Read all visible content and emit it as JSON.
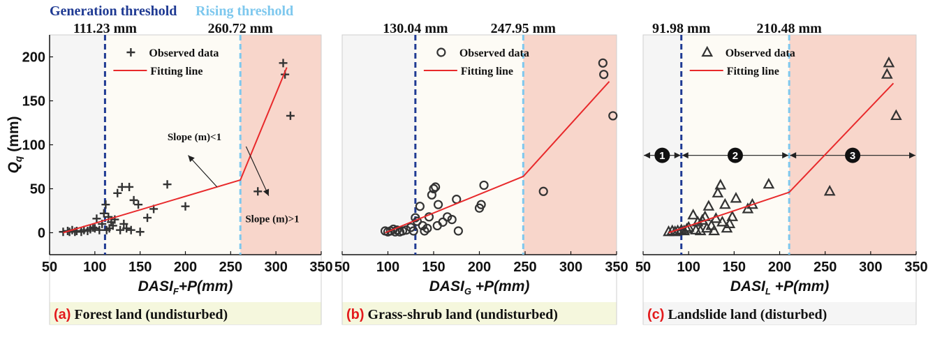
{
  "header": {
    "generation_label": "Generation threshold",
    "rising_label": "Rising threshold",
    "generation_color": "#1f3a93",
    "rising_color": "#7ec8ee"
  },
  "colors": {
    "fit_line": "#e8292b",
    "marker": "#333333",
    "zone_low": "#f5f5f5",
    "zone_mid": "#fdfbf5",
    "zone_high": "#f8d6cb",
    "caption_bg_ab": "#f5f7dd",
    "caption_bg_c": "#f5f5f5",
    "caption_letter": "#e31a1c"
  },
  "shared": {
    "ylabel": "Q",
    "ylabel_sub": "q",
    "ylabel_unit": " (mm)",
    "xlabel_base": "DASI",
    "xlabel_suffix": "+P(mm)",
    "legend_observed": "Observed data",
    "legend_fitting": "Fitting line"
  },
  "chart_data": [
    {
      "type": "scatter",
      "caption_letter": "(a)",
      "caption_text": "Forest land (undisturbed)",
      "xlabel_sub": "F",
      "marker": "plus",
      "xlim": [
        50,
        350
      ],
      "ylim": [
        -25,
        225
      ],
      "xticks": [
        50,
        100,
        150,
        200,
        250,
        300,
        350
      ],
      "yticks": [
        0,
        50,
        100,
        150,
        200
      ],
      "show_yaxis": true,
      "generation_threshold": 111.23,
      "generation_label": "111.23 mm",
      "rising_threshold": 260.72,
      "rising_label": "260.72 mm",
      "observed": [
        [
          65,
          1
        ],
        [
          70,
          2
        ],
        [
          72,
          1
        ],
        [
          75,
          3
        ],
        [
          78,
          1
        ],
        [
          80,
          2
        ],
        [
          85,
          1
        ],
        [
          88,
          3
        ],
        [
          92,
          2
        ],
        [
          95,
          4
        ],
        [
          98,
          6
        ],
        [
          100,
          5
        ],
        [
          102,
          16
        ],
        [
          105,
          3
        ],
        [
          108,
          10
        ],
        [
          110,
          22
        ],
        [
          112,
          32
        ],
        [
          113,
          3
        ],
        [
          115,
          18
        ],
        [
          116,
          5
        ],
        [
          118,
          12
        ],
        [
          120,
          8
        ],
        [
          122,
          15
        ],
        [
          125,
          45
        ],
        [
          128,
          3
        ],
        [
          130,
          52
        ],
        [
          132,
          10
        ],
        [
          135,
          5
        ],
        [
          138,
          52
        ],
        [
          140,
          3
        ],
        [
          143,
          37
        ],
        [
          148,
          32
        ],
        [
          150,
          1
        ],
        [
          158,
          17
        ],
        [
          165,
          27
        ],
        [
          180,
          55
        ],
        [
          200,
          30
        ],
        [
          280,
          47
        ],
        [
          308,
          193
        ],
        [
          310,
          180
        ],
        [
          316,
          133
        ]
      ],
      "fit_line": [
        [
          65,
          0
        ],
        [
          260.72,
          60
        ],
        [
          312,
          188
        ]
      ],
      "annotations": [
        {
          "text": "Slope (m)<1",
          "x": 210,
          "y": 105,
          "arrow_from": [
            235,
            52
          ],
          "arrow_to": [
            203,
            88
          ]
        },
        {
          "text": "Slope (m)>1",
          "x": 296,
          "y": 12,
          "arrow_from": [
            267,
            98
          ],
          "arrow_to": [
            292,
            42
          ]
        }
      ]
    },
    {
      "type": "scatter",
      "caption_letter": "(b)",
      "caption_text": "Grass-shrub land (undisturbed)",
      "xlabel_sub": "G",
      "marker": "circle",
      "xlim": [
        50,
        350
      ],
      "ylim": [
        -25,
        225
      ],
      "xticks": [
        50,
        100,
        150,
        200,
        250,
        300,
        350
      ],
      "yticks": [
        0,
        50,
        100,
        150,
        200
      ],
      "show_yaxis": false,
      "generation_threshold": 130.04,
      "generation_label": "130.04 mm",
      "rising_threshold": 247.95,
      "rising_label": "247.95 mm",
      "observed": [
        [
          97,
          2
        ],
        [
          100,
          1
        ],
        [
          103,
          2
        ],
        [
          106,
          4
        ],
        [
          108,
          1
        ],
        [
          110,
          3
        ],
        [
          113,
          1
        ],
        [
          116,
          2
        ],
        [
          120,
          3
        ],
        [
          125,
          6
        ],
        [
          128,
          2
        ],
        [
          130,
          17
        ],
        [
          132,
          13
        ],
        [
          135,
          30
        ],
        [
          138,
          8
        ],
        [
          140,
          2
        ],
        [
          143,
          5
        ],
        [
          145,
          18
        ],
        [
          148,
          43
        ],
        [
          150,
          50
        ],
        [
          152,
          52
        ],
        [
          154,
          8
        ],
        [
          155,
          32
        ],
        [
          160,
          12
        ],
        [
          165,
          18
        ],
        [
          170,
          15
        ],
        [
          175,
          38
        ],
        [
          177,
          2
        ],
        [
          200,
          28
        ],
        [
          202,
          32
        ],
        [
          205,
          54
        ],
        [
          270,
          47
        ],
        [
          335,
          193
        ],
        [
          336,
          180
        ],
        [
          346,
          133
        ]
      ],
      "fit_line": [
        [
          97,
          0
        ],
        [
          247.95,
          64
        ],
        [
          342,
          172
        ]
      ],
      "annotations": []
    },
    {
      "type": "scatter",
      "caption_letter": "(c)",
      "caption_text": "Landslide land (disturbed)",
      "xlabel_sub": "L",
      "marker": "triangle",
      "xlim": [
        50,
        350
      ],
      "ylim": [
        -25,
        225
      ],
      "xticks": [
        50,
        100,
        150,
        200,
        250,
        300,
        350
      ],
      "yticks": [
        0,
        50,
        100,
        150,
        200
      ],
      "show_yaxis": false,
      "generation_threshold": 91.98,
      "generation_label": "91.98 mm",
      "rising_threshold": 210.48,
      "rising_label": "210.48 mm",
      "observed": [
        [
          78,
          1
        ],
        [
          82,
          2
        ],
        [
          85,
          1
        ],
        [
          88,
          2
        ],
        [
          92,
          3
        ],
        [
          95,
          2
        ],
        [
          98,
          4
        ],
        [
          100,
          6
        ],
        [
          105,
          20
        ],
        [
          108,
          3
        ],
        [
          110,
          12
        ],
        [
          113,
          2
        ],
        [
          115,
          14
        ],
        [
          118,
          18
        ],
        [
          120,
          5
        ],
        [
          122,
          30
        ],
        [
          125,
          8
        ],
        [
          128,
          2
        ],
        [
          130,
          16
        ],
        [
          132,
          45
        ],
        [
          135,
          54
        ],
        [
          137,
          12
        ],
        [
          140,
          32
        ],
        [
          142,
          5
        ],
        [
          145,
          10
        ],
        [
          148,
          18
        ],
        [
          152,
          39
        ],
        [
          165,
          27
        ],
        [
          170,
          32
        ],
        [
          188,
          55
        ],
        [
          255,
          47
        ],
        [
          318,
          180
        ],
        [
          320,
          193
        ],
        [
          328,
          133
        ]
      ],
      "fit_line": [
        [
          78,
          0
        ],
        [
          210.48,
          46
        ],
        [
          325,
          170
        ]
      ],
      "annotations": [],
      "zones": [
        {
          "label": "1",
          "from": 50,
          "to": 91.98
        },
        {
          "label": "2",
          "from": 91.98,
          "to": 210.48
        },
        {
          "label": "3",
          "from": 210.48,
          "to": 350
        }
      ]
    }
  ]
}
